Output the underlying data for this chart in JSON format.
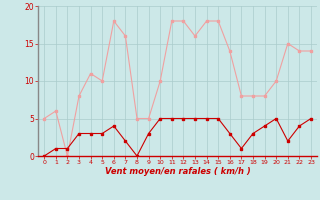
{
  "hours": [
    0,
    1,
    2,
    3,
    4,
    5,
    6,
    7,
    8,
    9,
    10,
    11,
    12,
    13,
    14,
    15,
    16,
    17,
    18,
    19,
    20,
    21,
    22,
    23
  ],
  "wind_mean": [
    0,
    1,
    1,
    3,
    3,
    3,
    4,
    2,
    0,
    3,
    5,
    5,
    5,
    5,
    5,
    5,
    3,
    1,
    3,
    4,
    5,
    2,
    4,
    5
  ],
  "wind_gust": [
    5,
    6,
    0,
    8,
    11,
    10,
    18,
    16,
    5,
    5,
    10,
    18,
    18,
    16,
    18,
    18,
    14,
    8,
    8,
    8,
    10,
    15,
    14,
    14
  ],
  "mean_color": "#cc0000",
  "gust_color": "#f0a0a0",
  "bg_color": "#cce8e8",
  "grid_color": "#aacccc",
  "xlabel": "Vent moyen/en rafales ( km/h )",
  "ylim": [
    0,
    20
  ],
  "yticks": [
    0,
    5,
    10,
    15,
    20
  ],
  "xticks": [
    0,
    1,
    2,
    3,
    4,
    5,
    6,
    7,
    8,
    9,
    10,
    11,
    12,
    13,
    14,
    15,
    16,
    17,
    18,
    19,
    20,
    21,
    22,
    23
  ]
}
